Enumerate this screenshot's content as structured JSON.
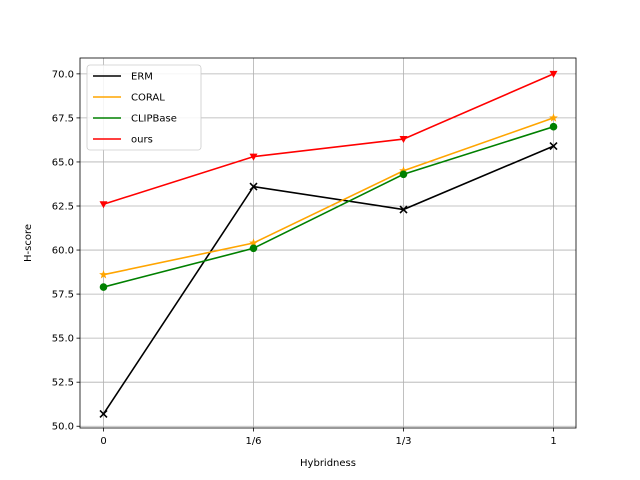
{
  "chart_data": {
    "type": "line",
    "title": "",
    "xlabel": "Hybridness",
    "ylabel": "H-score",
    "categories": [
      "0",
      "1/6",
      "1/3",
      "1"
    ],
    "ylim": [
      49.9,
      70.9
    ],
    "yticks": [
      "50.0",
      "52.5",
      "55.0",
      "57.5",
      "60.0",
      "62.5",
      "65.0",
      "67.5",
      "70.0"
    ],
    "grid": true,
    "legend_position": "top-left",
    "series": [
      {
        "name": "ERM",
        "values": [
          50.7,
          63.6,
          62.3,
          65.9
        ],
        "color": "#000000",
        "marker": "x"
      },
      {
        "name": "CORAL",
        "values": [
          58.6,
          60.4,
          64.5,
          67.5
        ],
        "color": "#ffa500",
        "marker": "star"
      },
      {
        "name": "CLIPBase",
        "values": [
          57.9,
          60.1,
          64.3,
          67.0
        ],
        "color": "#008000",
        "marker": "circle"
      },
      {
        "name": "ours",
        "values": [
          62.6,
          65.3,
          66.3,
          70.0
        ],
        "color": "#ff0000",
        "marker": "triangle-down"
      }
    ]
  }
}
